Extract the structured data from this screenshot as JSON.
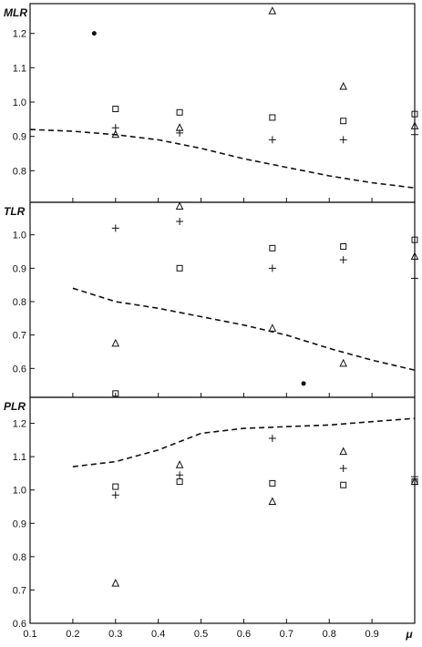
{
  "chart_data": {
    "x_axis": {
      "label": "μ",
      "range": [
        0.1,
        1.0
      ],
      "ticks": [
        "0.1",
        "0.2",
        "0.3",
        "0.4",
        "0.5",
        "0.6",
        "0.7",
        "0.8",
        "0.9"
      ]
    },
    "panels": [
      {
        "label": "MLR",
        "type": "scatter",
        "ylim": [
          0.7,
          1.3
        ],
        "yticks": [
          "0.8",
          "0.9",
          "1.0",
          "1.1",
          "1.2"
        ],
        "dashed_line": {
          "x": [
            0.1,
            0.2,
            0.3,
            0.4,
            0.5,
            0.6,
            0.7,
            0.8,
            0.9,
            1.0
          ],
          "y": [
            0.92,
            0.915,
            0.905,
            0.89,
            0.865,
            0.835,
            0.81,
            0.785,
            0.765,
            0.75
          ]
        },
        "squares": {
          "x": [
            0.3,
            0.45,
            0.667,
            0.833,
            1.0
          ],
          "y": [
            0.98,
            0.97,
            0.955,
            0.945,
            0.965
          ]
        },
        "triangles": {
          "x": [
            0.3,
            0.45,
            0.667,
            0.833,
            1.0
          ],
          "y": [
            0.905,
            0.925,
            1.265,
            1.045,
            0.93
          ]
        },
        "crosses": {
          "x": [
            0.3,
            0.45,
            0.667,
            0.833,
            1.0
          ],
          "y": [
            0.925,
            0.91,
            0.89,
            0.89,
            0.905
          ]
        },
        "dots": {
          "x": [
            0.25
          ],
          "y": [
            1.2
          ]
        }
      },
      {
        "label": "TLR",
        "type": "scatter",
        "ylim": [
          0.5,
          1.1
        ],
        "yticks": [
          "0.6",
          "0.7",
          "0.8",
          "0.9",
          "1.0"
        ],
        "dashed_line": {
          "x": [
            0.2,
            0.3,
            0.4,
            0.5,
            0.6,
            0.7,
            0.8,
            0.9,
            1.0
          ],
          "y": [
            0.84,
            0.8,
            0.78,
            0.755,
            0.73,
            0.7,
            0.66,
            0.625,
            0.595
          ]
        },
        "squares": {
          "x": [
            0.3,
            0.45,
            0.667,
            0.833,
            1.0
          ],
          "y": [
            0.525,
            0.9,
            0.96,
            0.965,
            0.985
          ]
        },
        "triangles": {
          "x": [
            0.3,
            0.45,
            0.667,
            0.833,
            1.0
          ],
          "y": [
            0.675,
            1.085,
            0.72,
            0.615,
            0.935
          ]
        },
        "crosses": {
          "x": [
            0.3,
            0.45,
            0.667,
            0.833,
            1.0
          ],
          "y": [
            1.02,
            1.04,
            0.9,
            0.925,
            0.87
          ]
        },
        "dots": {
          "x": [
            0.74
          ],
          "y": [
            0.555
          ]
        }
      },
      {
        "label": "PLR",
        "type": "scatter",
        "ylim": [
          0.6,
          1.3
        ],
        "yticks": [
          "0.6",
          "0.7",
          "0.8",
          "0.9",
          "1.0",
          "1.1",
          "1.2"
        ],
        "dashed_line": {
          "x": [
            0.2,
            0.3,
            0.4,
            0.5,
            0.6,
            0.7,
            0.8,
            0.9,
            1.0
          ],
          "y": [
            1.07,
            1.085,
            1.12,
            1.17,
            1.185,
            1.19,
            1.195,
            1.205,
            1.215
          ]
        },
        "squares": {
          "x": [
            0.3,
            0.45,
            0.667,
            0.833,
            1.0
          ],
          "y": [
            1.01,
            1.025,
            1.02,
            1.015,
            1.025
          ]
        },
        "triangles": {
          "x": [
            0.3,
            0.45,
            0.667,
            0.833,
            1.0
          ],
          "y": [
            0.72,
            1.075,
            0.965,
            1.115,
            1.025
          ]
        },
        "crosses": {
          "x": [
            0.3,
            0.45,
            0.667,
            0.833,
            1.0
          ],
          "y": [
            0.985,
            1.045,
            1.155,
            1.065,
            1.04
          ]
        },
        "dots": {
          "x": [],
          "y": []
        }
      }
    ]
  }
}
